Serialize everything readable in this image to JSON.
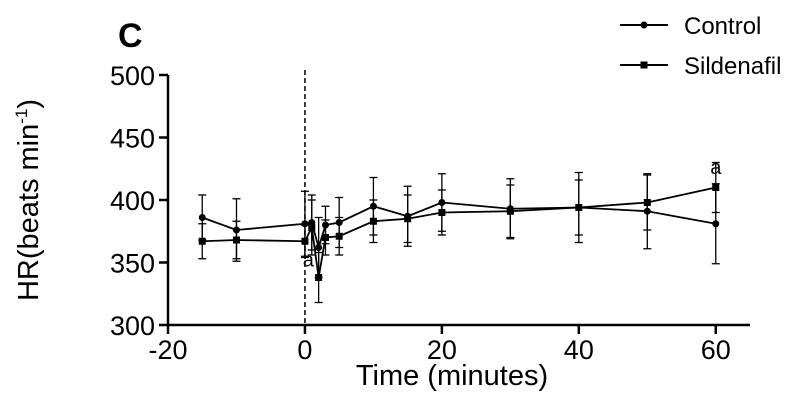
{
  "chart_data": {
    "type": "line",
    "panel_label": "C",
    "xlabel": "Time (minutes)",
    "ylabel": "HR(beats min",
    "ylabel_superscript": "-1",
    "ylabel_close": ")",
    "xlim": [
      -20,
      65
    ],
    "ylim": [
      300,
      500
    ],
    "xticks": [
      -20,
      0,
      20,
      40,
      60
    ],
    "yticks": [
      300,
      350,
      400,
      450,
      500
    ],
    "xtick_labels": [
      "-20",
      "0",
      "20",
      "40",
      "60"
    ],
    "ytick_labels": [
      "300",
      "350",
      "400",
      "450",
      "500"
    ],
    "vertical_dashed_line_x": 0,
    "grid": false,
    "legend_position": "top-right",
    "series": [
      {
        "name": "Control",
        "marker": "circle",
        "points": [
          {
            "x": -15,
            "y": 386,
            "err": 18
          },
          {
            "x": -10,
            "y": 376,
            "err": 25
          },
          {
            "x": 0,
            "y": 381,
            "err": 26
          },
          {
            "x": 1,
            "y": 382,
            "err": 22
          },
          {
            "x": 2,
            "y": 362,
            "err": 24
          },
          {
            "x": 3,
            "y": 380,
            "err": 15
          },
          {
            "x": 5,
            "y": 382,
            "err": 20
          },
          {
            "x": 10,
            "y": 395,
            "err": 23
          },
          {
            "x": 15,
            "y": 387,
            "err": 24
          },
          {
            "x": 20,
            "y": 398,
            "err": 23
          },
          {
            "x": 30,
            "y": 393,
            "err": 24
          },
          {
            "x": 40,
            "y": 394,
            "err": 28
          },
          {
            "x": 50,
            "y": 391,
            "err": 30
          },
          {
            "x": 60,
            "y": 381,
            "err": 32
          }
        ]
      },
      {
        "name": "Sildenafil",
        "marker": "square",
        "points": [
          {
            "x": -15,
            "y": 367,
            "err": 14
          },
          {
            "x": -10,
            "y": 368,
            "err": 15
          },
          {
            "x": 0,
            "y": 367,
            "err": 13
          },
          {
            "x": 1,
            "y": 378,
            "err": 22
          },
          {
            "x": 2,
            "y": 338,
            "err": 20
          },
          {
            "x": 3,
            "y": 370,
            "err": 14
          },
          {
            "x": 5,
            "y": 371,
            "err": 15
          },
          {
            "x": 10,
            "y": 383,
            "err": 17
          },
          {
            "x": 15,
            "y": 385,
            "err": 19
          },
          {
            "x": 20,
            "y": 390,
            "err": 18
          },
          {
            "x": 30,
            "y": 391,
            "err": 21
          },
          {
            "x": 40,
            "y": 394,
            "err": 22
          },
          {
            "x": 50,
            "y": 398,
            "err": 22
          },
          {
            "x": 60,
            "y": 410,
            "err": 20
          }
        ]
      }
    ],
    "annotations": [
      {
        "text": "a",
        "x": 60,
        "y": 421
      },
      {
        "text": "a",
        "x": 0.5,
        "y": 347
      }
    ]
  }
}
